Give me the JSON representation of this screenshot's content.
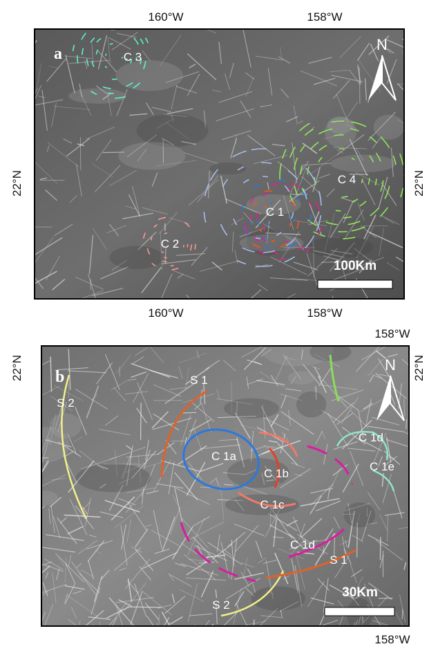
{
  "panels": [
    {
      "label": "a",
      "lon_top": [
        "160°W",
        "158°W"
      ],
      "lon_bottom": [
        "160°W",
        "158°W"
      ],
      "lat_left": "22°N",
      "lat_right": "22°N",
      "north": "N",
      "scale_bar": "100Km",
      "features": [
        "C 3",
        "C 4",
        "C 1",
        "C 2"
      ]
    },
    {
      "label": "b",
      "lon_top": "158°W",
      "lon_bottom": "158°W",
      "lat_left": "22°N",
      "lat_right": "22°N",
      "north": "N",
      "scale_bar": "30Km",
      "features": [
        "S 1",
        "S 2",
        "C 1a",
        "C 1b",
        "C 1c",
        "C 1d",
        "C 1e",
        "C 1d",
        "S 1",
        "S 2"
      ]
    }
  ]
}
